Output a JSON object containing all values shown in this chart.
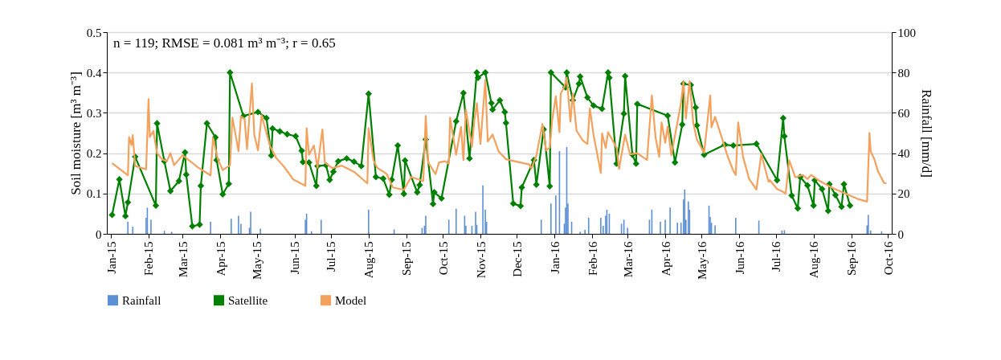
{
  "chart_data": {
    "type": "line",
    "ylabel": "Soil moisture [m³ m⁻³]",
    "y2label": "Rainfall [mm/d]",
    "annotations": [
      "n = 119; RMSE = 0.081 m³ m⁻³; r = 0.65"
    ],
    "xlim": [
      "2015-01-01",
      "2016-10-01"
    ],
    "xticks": [
      {
        "value": "2015-01-01",
        "label": "Jan-15"
      },
      {
        "value": "2015-02-01",
        "label": "Feb-15"
      },
      {
        "value": "2015-03-01",
        "label": "Mar-15"
      },
      {
        "value": "2015-04-01",
        "label": "Apr-15"
      },
      {
        "value": "2015-05-01",
        "label": "May-15"
      },
      {
        "value": "2015-06-01",
        "label": "Jun-15"
      },
      {
        "value": "2015-07-01",
        "label": "Jul-15"
      },
      {
        "value": "2015-08-01",
        "label": "Aug-15"
      },
      {
        "value": "2015-09-01",
        "label": "Sep-15"
      },
      {
        "value": "2015-10-01",
        "label": "Oct-15"
      },
      {
        "value": "2015-11-01",
        "label": "Nov-15"
      },
      {
        "value": "2015-12-01",
        "label": "Dec-15"
      },
      {
        "value": "2016-01-01",
        "label": "Jan-16"
      },
      {
        "value": "2016-02-01",
        "label": "Feb-16"
      },
      {
        "value": "2016-03-01",
        "label": "Mar-16"
      },
      {
        "value": "2016-04-01",
        "label": "Apr-16"
      },
      {
        "value": "2016-05-01",
        "label": "May-16"
      },
      {
        "value": "2016-06-01",
        "label": "Jun-16"
      },
      {
        "value": "2016-07-01",
        "label": "Jul-16"
      },
      {
        "value": "2016-08-01",
        "label": "Aug-16"
      },
      {
        "value": "2016-09-01",
        "label": "Sep-16"
      },
      {
        "value": "2016-10-01",
        "label": "Oct-16"
      }
    ],
    "ylim": [
      0,
      0.5
    ],
    "yticks": [
      0,
      0.1,
      0.2,
      0.3,
      0.4,
      0.5
    ],
    "y2lim": [
      0,
      100
    ],
    "y2ticks": [
      0,
      20,
      40,
      60,
      80,
      100
    ],
    "grid": "y",
    "legend": "bottom",
    "series": [
      {
        "name": "Rainfall",
        "type": "bar",
        "axis": "y2",
        "color": "#5b8fd6",
        "x": [
          "2015-01-15",
          "2015-01-19",
          "2015-01-30",
          "2015-01-31",
          "2015-02-03",
          "2015-02-14",
          "2015-02-20",
          "2015-03-24",
          "2015-04-10",
          "2015-04-16",
          "2015-04-18",
          "2015-04-25",
          "2015-04-26",
          "2015-05-04",
          "2015-06-10",
          "2015-06-11",
          "2015-06-15",
          "2015-06-23",
          "2015-08-01",
          "2015-08-22",
          "2015-09-14",
          "2015-09-16",
          "2015-09-17",
          "2015-10-06",
          "2015-10-12",
          "2015-10-19",
          "2015-10-20",
          "2015-10-25",
          "2015-10-28",
          "2015-10-29",
          "2015-11-03",
          "2015-11-05",
          "2015-11-06",
          "2015-12-21",
          "2015-12-29",
          "2016-01-02",
          "2016-01-05",
          "2016-01-09",
          "2016-01-10",
          "2016-01-11",
          "2016-01-12",
          "2016-01-15",
          "2016-01-22",
          "2016-01-26",
          "2016-01-29",
          "2016-02-08",
          "2016-02-10",
          "2016-02-12",
          "2016-02-13",
          "2016-02-15",
          "2016-02-25",
          "2016-02-27",
          "2016-03-01",
          "2016-03-19",
          "2016-03-21",
          "2016-03-28",
          "2016-04-01",
          "2016-04-05",
          "2016-04-11",
          "2016-04-14",
          "2016-04-16",
          "2016-04-17",
          "2016-04-18",
          "2016-04-20",
          "2016-04-21",
          "2016-05-07",
          "2016-05-08",
          "2016-05-09",
          "2016-05-12",
          "2016-05-29",
          "2016-06-17",
          "2016-07-06",
          "2016-07-08",
          "2016-09-14",
          "2016-09-15",
          "2016-09-17",
          "2016-09-26"
        ],
        "values": [
          6,
          3.5,
          8,
          13,
          7,
          1.5,
          1,
          6,
          7.5,
          9,
          5,
          3,
          11,
          2.6,
          7,
          10,
          1.3,
          7,
          12,
          2.2,
          3,
          4,
          9,
          7,
          12.5,
          9,
          4,
          4,
          11,
          4.5,
          24,
          12,
          6,
          7,
          15,
          19,
          41,
          5,
          13,
          43,
          15,
          6,
          1,
          2,
          8,
          8,
          4,
          9,
          12,
          10,
          5,
          7,
          3,
          7,
          12,
          6,
          7,
          13,
          5.5,
          5.5,
          17,
          22,
          7,
          16,
          12,
          14,
          8.4,
          5.5,
          4.2,
          8,
          6.6,
          1.6,
          1.8,
          4.2,
          9.4,
          1.6,
          1.3
        ]
      },
      {
        "name": "Satellite",
        "marker": "diamond",
        "color": "#008000",
        "x": [
          "2015-01-02",
          "2015-01-08",
          "2015-01-13",
          "2015-01-15",
          "2015-01-21",
          "2015-02-07",
          "2015-02-08",
          "2015-02-14",
          "2015-02-19",
          "2015-02-26",
          "2015-03-03",
          "2015-03-04",
          "2015-03-09",
          "2015-03-15",
          "2015-03-16",
          "2015-03-21",
          "2015-03-28",
          "2015-03-29",
          "2015-04-03",
          "2015-04-08",
          "2015-04-09",
          "2015-04-20",
          "2015-05-02",
          "2015-05-09",
          "2015-05-13",
          "2015-05-14",
          "2015-05-20",
          "2015-05-26",
          "2015-06-02",
          "2015-06-07",
          "2015-06-08",
          "2015-06-13",
          "2015-06-19",
          "2015-06-20",
          "2015-06-27",
          "2015-06-30",
          "2015-07-03",
          "2015-07-07",
          "2015-07-14",
          "2015-07-20",
          "2015-07-26",
          "2015-08-01",
          "2015-08-07",
          "2015-08-13",
          "2015-08-18",
          "2015-08-20",
          "2015-08-25",
          "2015-08-30",
          "2015-08-31",
          "2015-09-10",
          "2015-09-12",
          "2015-09-17",
          "2015-09-23",
          "2015-09-24",
          "2015-09-30",
          "2015-10-12",
          "2015-10-18",
          "2015-10-23",
          "2015-10-29",
          "2015-10-30",
          "2015-11-05",
          "2015-11-10",
          "2015-11-11",
          "2015-11-17",
          "2015-11-21",
          "2015-11-22",
          "2015-11-28",
          "2015-12-04",
          "2015-12-05",
          "2015-12-15",
          "2015-12-17",
          "2015-12-23",
          "2015-12-28",
          "2015-12-29",
          "2016-01-10",
          "2016-01-11",
          "2016-01-16",
          "2016-01-21",
          "2016-01-22",
          "2016-01-28",
          "2016-02-02",
          "2016-02-09",
          "2016-02-14",
          "2016-02-15",
          "2016-02-21",
          "2016-02-27",
          "2016-02-28",
          "2016-03-05",
          "2016-03-08",
          "2016-03-09",
          "2016-04-03",
          "2016-04-09",
          "2016-04-15",
          "2016-04-16",
          "2016-04-22",
          "2016-04-26",
          "2016-04-27",
          "2016-05-03",
          "2016-05-20",
          "2016-05-27",
          "2016-06-15",
          "2016-07-02",
          "2016-07-07",
          "2016-07-08",
          "2016-07-14",
          "2016-07-19",
          "2016-07-21",
          "2016-07-27",
          "2016-08-01",
          "2016-08-02",
          "2016-08-08",
          "2016-08-13",
          "2016-08-14",
          "2016-08-19",
          "2016-08-24",
          "2016-08-26",
          "2016-08-31"
        ],
        "values": [
          0.047,
          0.135,
          0.044,
          0.078,
          0.191,
          0.07,
          0.274,
          0.18,
          0.106,
          0.131,
          0.202,
          0.147,
          0.019,
          0.023,
          0.119,
          0.274,
          0.239,
          0.183,
          0.098,
          0.124,
          0.4,
          0.292,
          0.302,
          0.287,
          0.194,
          0.261,
          0.254,
          0.247,
          0.242,
          0.206,
          0.178,
          0.177,
          0.119,
          0.168,
          0.17,
          0.134,
          0.154,
          0.18,
          0.187,
          0.179,
          0.168,
          0.347,
          0.141,
          0.137,
          0.097,
          0.134,
          0.219,
          0.099,
          0.182,
          0.103,
          0.121,
          0.234,
          0.074,
          0.103,
          0.088,
          0.279,
          0.349,
          0.187,
          0.4,
          0.387,
          0.4,
          0.324,
          0.308,
          0.331,
          0.302,
          0.275,
          0.075,
          0.069,
          0.115,
          0.183,
          0.122,
          0.259,
          0.118,
          0.4,
          0.363,
          0.4,
          0.331,
          0.372,
          0.39,
          0.338,
          0.318,
          0.31,
          0.4,
          0.387,
          0.174,
          0.298,
          0.391,
          0.196,
          0.174,
          0.322,
          0.293,
          0.177,
          0.271,
          0.372,
          0.369,
          0.313,
          0.269,
          0.196,
          0.221,
          0.219,
          0.223,
          0.133,
          0.287,
          0.242,
          0.095,
          0.063,
          0.141,
          0.12,
          0.07,
          0.133,
          0.111,
          0.057,
          0.123,
          0.096,
          0.067,
          0.123,
          0.07
        ]
      },
      {
        "name": "Model",
        "marker": "none",
        "color": "#f4a15d",
        "x": [
          "2015-01-02",
          "2015-01-15",
          "2015-01-16",
          "2015-01-18",
          "2015-01-19",
          "2015-01-21",
          "2015-01-30",
          "2015-02-01",
          "2015-02-02",
          "2015-02-05",
          "2015-02-08",
          "2015-02-12",
          "2015-02-16",
          "2015-02-19",
          "2015-02-22",
          "2015-03-01",
          "2015-03-06",
          "2015-03-13",
          "2015-03-24",
          "2015-03-26",
          "2015-03-30",
          "2015-04-03",
          "2015-04-09",
          "2015-04-11",
          "2015-04-16",
          "2015-04-18",
          "2015-04-21",
          "2015-04-23",
          "2015-04-27",
          "2015-04-29",
          "2015-05-02",
          "2015-05-05",
          "2015-05-09",
          "2015-05-12",
          "2015-05-17",
          "2015-05-23",
          "2015-05-31",
          "2015-06-10",
          "2015-06-11",
          "2015-06-13",
          "2015-06-17",
          "2015-06-20",
          "2015-06-24",
          "2015-06-26",
          "2015-07-02",
          "2015-07-10",
          "2015-07-20",
          "2015-07-31",
          "2015-08-01",
          "2015-08-05",
          "2015-08-08",
          "2015-08-16",
          "2015-08-21",
          "2015-08-30",
          "2015-09-05",
          "2015-09-15",
          "2015-09-17",
          "2015-09-19",
          "2015-09-25",
          "2015-09-28",
          "2015-10-03",
          "2015-10-06",
          "2015-10-07",
          "2015-10-12",
          "2015-10-16",
          "2015-10-18",
          "2015-10-20",
          "2015-10-25",
          "2015-10-27",
          "2015-10-29",
          "2015-11-01",
          "2015-11-05",
          "2015-11-07",
          "2015-11-11",
          "2015-11-16",
          "2015-11-22",
          "2015-12-02",
          "2015-12-11",
          "2015-12-13",
          "2015-12-17",
          "2015-12-22",
          "2015-12-25",
          "2015-12-28",
          "2015-12-30",
          "2016-01-02",
          "2016-01-05",
          "2016-01-06",
          "2016-01-09",
          "2016-01-11",
          "2016-01-14",
          "2016-01-16",
          "2016-01-19",
          "2016-01-24",
          "2016-01-28",
          "2016-01-30",
          "2016-02-02",
          "2016-02-08",
          "2016-02-09",
          "2016-02-12",
          "2016-02-14",
          "2016-02-21",
          "2016-02-23",
          "2016-02-28",
          "2016-03-03",
          "2016-03-09",
          "2016-03-17",
          "2016-03-21",
          "2016-03-24",
          "2016-03-27",
          "2016-03-29",
          "2016-04-01",
          "2016-04-03",
          "2016-04-06",
          "2016-04-14",
          "2016-04-16",
          "2016-04-18",
          "2016-04-21",
          "2016-04-24",
          "2016-04-27",
          "2016-05-03",
          "2016-05-08",
          "2016-05-09",
          "2016-05-12",
          "2016-05-18",
          "2016-05-22",
          "2016-05-27",
          "2016-05-29",
          "2016-05-31",
          "2016-06-04",
          "2016-06-09",
          "2016-06-15",
          "2016-06-19",
          "2016-06-25",
          "2016-06-26",
          "2016-07-02",
          "2016-07-07",
          "2016-07-09",
          "2016-07-12",
          "2016-07-17",
          "2016-07-23",
          "2016-07-27",
          "2016-07-30",
          "2016-08-05",
          "2016-08-15",
          "2016-08-26",
          "2016-09-06",
          "2016-09-14",
          "2016-09-16",
          "2016-09-17",
          "2016-09-20",
          "2016-09-23",
          "2016-09-28",
          "2016-09-30"
        ],
        "values": [
          0.175,
          0.145,
          0.24,
          0.22,
          0.245,
          0.168,
          0.16,
          0.334,
          0.24,
          0.255,
          0.2,
          0.185,
          0.18,
          0.2,
          0.17,
          0.195,
          0.183,
          0.166,
          0.145,
          0.238,
          0.185,
          0.158,
          0.17,
          0.288,
          0.205,
          0.291,
          0.285,
          0.21,
          0.373,
          0.245,
          0.207,
          0.294,
          0.25,
          0.217,
          0.188,
          0.168,
          0.135,
          0.119,
          0.262,
          0.196,
          0.219,
          0.164,
          0.259,
          0.177,
          0.163,
          0.169,
          0.154,
          0.125,
          0.262,
          0.183,
          0.164,
          0.148,
          0.115,
          0.109,
          0.141,
          0.131,
          0.292,
          0.177,
          0.148,
          0.177,
          0.18,
          0.174,
          0.288,
          0.196,
          0.265,
          0.183,
          0.308,
          0.216,
          0.281,
          0.324,
          0.223,
          0.382,
          0.229,
          0.246,
          0.204,
          0.185,
          0.178,
          0.172,
          0.162,
          0.194,
          0.272,
          0.207,
          0.214,
          0.282,
          0.341,
          0.252,
          0.348,
          0.364,
          0.387,
          0.278,
          0.348,
          0.256,
          0.232,
          0.223,
          0.311,
          0.246,
          0.151,
          0.249,
          0.213,
          0.252,
          0.213,
          0.161,
          0.246,
          0.197,
          0.2,
          0.183,
          0.343,
          0.24,
          0.191,
          0.276,
          0.226,
          0.266,
          0.195,
          0.325,
          0.378,
          0.286,
          0.379,
          0.276,
          0.234,
          0.201,
          0.343,
          0.264,
          0.29,
          0.234,
          0.195,
          0.156,
          0.146,
          0.276,
          0.191,
          0.136,
          0.11,
          0.198,
          0.129,
          0.133,
          0.111,
          0.104,
          0.1,
          0.182,
          0.14,
          0.146,
          0.136,
          0.146,
          0.133,
          0.116,
          0.101,
          0.087,
          0.08,
          0.25,
          0.204,
          0.185,
          0.155,
          0.126,
          0.125
        ]
      }
    ]
  }
}
